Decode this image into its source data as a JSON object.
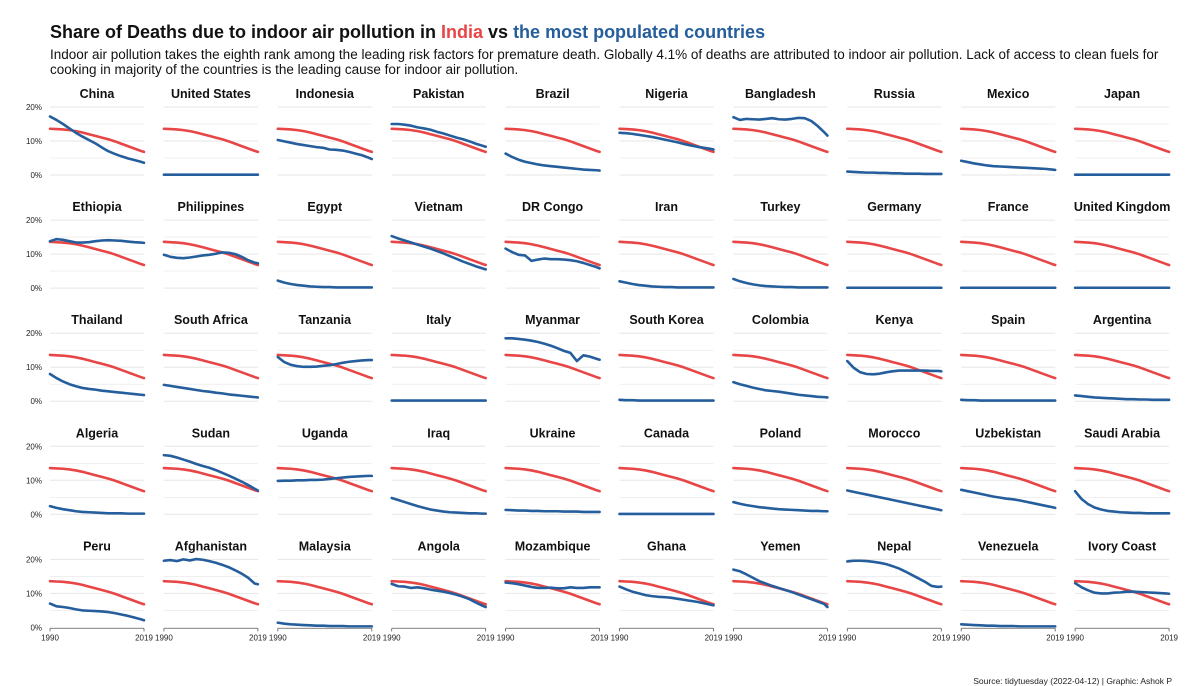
{
  "header": {
    "title_part1": "Share of Deaths due to indoor air pollution in ",
    "title_part2": "India",
    "title_part3": " vs ",
    "title_part4": "the most populated countries",
    "subtitle": "Indoor air pollution takes the eighth rank among the leading risk factors for premature death. Globally 4.1% of deaths are attributed to indoor air pollution. Lack of access to clean fuels for cooking in majority of the countries is the leading cause for indoor air pollution.",
    "caption": "Source: tidytuesday (2022-04-12) | Graphic: Ashok P"
  },
  "colors": {
    "india": "#e84646",
    "country": "#255e9c",
    "grid": "#e6e6e6",
    "text": "#222222"
  },
  "chart_data": {
    "type": "line",
    "facet": "small multiples, 5 rows x 10 columns",
    "x_range": [
      1990,
      2019
    ],
    "x_ticks": [
      1990,
      2019
    ],
    "ylim": [
      0,
      20
    ],
    "y_ticks": [
      "0%",
      "10%",
      "20%"
    ],
    "grid": true,
    "x": [
      1990,
      1992,
      1994,
      1996,
      1998,
      2000,
      2002,
      2004,
      2006,
      2008,
      2010,
      2012,
      2014,
      2016,
      2018,
      2019
    ],
    "india": [
      13.6,
      13.5,
      13.4,
      13.2,
      12.9,
      12.5,
      12.0,
      11.5,
      11.0,
      10.5,
      9.9,
      9.2,
      8.5,
      7.8,
      7.1,
      6.8
    ],
    "series": [
      {
        "name": "China",
        "values": [
          17.2,
          16.2,
          15.0,
          13.7,
          12.4,
          11.3,
          10.3,
          9.3,
          8.1,
          7.0,
          6.2,
          5.5,
          4.9,
          4.4,
          3.9,
          3.6
        ]
      },
      {
        "name": "United States",
        "values": [
          0.1,
          0.1,
          0.1,
          0.1,
          0.1,
          0.1,
          0.1,
          0.1,
          0.1,
          0.1,
          0.1,
          0.1,
          0.1,
          0.1,
          0.1,
          0.1
        ]
      },
      {
        "name": "Indonesia",
        "values": [
          10.3,
          9.9,
          9.5,
          9.1,
          8.8,
          8.5,
          8.2,
          8.0,
          7.5,
          7.4,
          7.2,
          6.8,
          6.3,
          5.8,
          5.1,
          4.7
        ]
      },
      {
        "name": "Pakistan",
        "values": [
          15.0,
          15.0,
          14.8,
          14.5,
          14.0,
          13.7,
          13.3,
          12.7,
          12.2,
          11.6,
          11.0,
          10.5,
          9.9,
          9.2,
          8.6,
          8.3
        ]
      },
      {
        "name": "Brazil",
        "values": [
          6.3,
          5.3,
          4.5,
          3.9,
          3.5,
          3.1,
          2.8,
          2.6,
          2.4,
          2.2,
          2.0,
          1.8,
          1.6,
          1.5,
          1.4,
          1.3
        ]
      },
      {
        "name": "Nigeria",
        "values": [
          12.4,
          12.3,
          12.1,
          11.8,
          11.5,
          11.2,
          10.8,
          10.4,
          10.0,
          9.6,
          9.1,
          8.7,
          8.3,
          8.0,
          7.7,
          7.5
        ]
      },
      {
        "name": "Bangladesh",
        "values": [
          17.0,
          16.2,
          16.5,
          16.4,
          16.3,
          16.5,
          16.7,
          16.4,
          16.3,
          16.5,
          16.8,
          16.7,
          15.9,
          14.4,
          12.6,
          11.6
        ]
      },
      {
        "name": "Russia",
        "values": [
          1.0,
          0.9,
          0.8,
          0.7,
          0.7,
          0.6,
          0.6,
          0.5,
          0.5,
          0.4,
          0.4,
          0.4,
          0.3,
          0.3,
          0.3,
          0.3
        ]
      },
      {
        "name": "Mexico",
        "values": [
          4.2,
          3.8,
          3.4,
          3.1,
          2.8,
          2.6,
          2.5,
          2.4,
          2.3,
          2.2,
          2.1,
          2.0,
          1.9,
          1.8,
          1.6,
          1.5
        ]
      },
      {
        "name": "Japan",
        "values": [
          0.1,
          0.1,
          0.1,
          0.1,
          0.1,
          0.1,
          0.1,
          0.1,
          0.1,
          0.1,
          0.1,
          0.1,
          0.1,
          0.1,
          0.1,
          0.1
        ]
      },
      {
        "name": "Ethiopia",
        "values": [
          13.8,
          14.4,
          14.2,
          13.8,
          13.4,
          13.4,
          13.5,
          13.8,
          14.0,
          14.1,
          14.0,
          13.9,
          13.7,
          13.5,
          13.4,
          13.3
        ]
      },
      {
        "name": "Philippines",
        "values": [
          9.8,
          9.2,
          8.9,
          8.8,
          9.0,
          9.3,
          9.6,
          9.8,
          10.1,
          10.5,
          10.4,
          10.0,
          9.2,
          8.2,
          7.5,
          7.3
        ]
      },
      {
        "name": "Egypt",
        "values": [
          2.2,
          1.6,
          1.2,
          0.9,
          0.7,
          0.5,
          0.4,
          0.3,
          0.3,
          0.2,
          0.2,
          0.2,
          0.2,
          0.2,
          0.2,
          0.2
        ]
      },
      {
        "name": "Vietnam",
        "values": [
          15.3,
          14.6,
          14.0,
          13.4,
          12.8,
          12.2,
          11.6,
          10.9,
          10.2,
          9.4,
          8.6,
          7.8,
          7.1,
          6.4,
          5.8,
          5.5
        ]
      },
      {
        "name": "DR Congo",
        "values": [
          11.6,
          10.6,
          9.8,
          9.6,
          8.0,
          8.4,
          8.7,
          8.5,
          8.5,
          8.4,
          8.2,
          7.9,
          7.4,
          6.8,
          6.2,
          5.8
        ]
      },
      {
        "name": "Iran",
        "values": [
          2.0,
          1.6,
          1.2,
          0.9,
          0.7,
          0.5,
          0.4,
          0.3,
          0.3,
          0.2,
          0.2,
          0.2,
          0.2,
          0.2,
          0.2,
          0.2
        ]
      },
      {
        "name": "Turkey",
        "values": [
          2.7,
          2.0,
          1.5,
          1.1,
          0.8,
          0.6,
          0.5,
          0.4,
          0.3,
          0.3,
          0.2,
          0.2,
          0.2,
          0.2,
          0.2,
          0.2
        ]
      },
      {
        "name": "Germany",
        "values": [
          0.1,
          0.1,
          0.1,
          0.1,
          0.1,
          0.1,
          0.1,
          0.1,
          0.1,
          0.1,
          0.1,
          0.1,
          0.1,
          0.1,
          0.1,
          0.1
        ]
      },
      {
        "name": "France",
        "values": [
          0.1,
          0.1,
          0.1,
          0.1,
          0.1,
          0.1,
          0.1,
          0.1,
          0.1,
          0.1,
          0.1,
          0.1,
          0.1,
          0.1,
          0.1,
          0.1
        ]
      },
      {
        "name": "United Kingdom",
        "values": [
          0.1,
          0.1,
          0.1,
          0.1,
          0.1,
          0.1,
          0.1,
          0.1,
          0.1,
          0.1,
          0.1,
          0.1,
          0.1,
          0.1,
          0.1,
          0.1
        ]
      },
      {
        "name": "Thailand",
        "values": [
          8.0,
          6.8,
          5.8,
          5.0,
          4.4,
          3.9,
          3.6,
          3.4,
          3.1,
          2.9,
          2.7,
          2.5,
          2.3,
          2.1,
          1.9,
          1.8
        ]
      },
      {
        "name": "South Africa",
        "values": [
          4.8,
          4.5,
          4.2,
          3.9,
          3.6,
          3.3,
          3.0,
          2.8,
          2.5,
          2.3,
          2.0,
          1.8,
          1.6,
          1.4,
          1.2,
          1.1
        ]
      },
      {
        "name": "Tanzania",
        "values": [
          13.0,
          11.5,
          10.7,
          10.3,
          10.1,
          10.1,
          10.2,
          10.4,
          10.6,
          10.9,
          11.3,
          11.6,
          11.8,
          12.0,
          12.1,
          12.1
        ]
      },
      {
        "name": "Italy",
        "values": [
          0.2,
          0.2,
          0.2,
          0.2,
          0.2,
          0.2,
          0.2,
          0.2,
          0.2,
          0.2,
          0.2,
          0.2,
          0.2,
          0.2,
          0.2,
          0.2
        ]
      },
      {
        "name": "Myanmar",
        "values": [
          18.5,
          18.5,
          18.3,
          18.1,
          17.8,
          17.4,
          16.9,
          16.3,
          15.6,
          14.8,
          14.2,
          11.8,
          13.5,
          13.1,
          12.5,
          12.2
        ]
      },
      {
        "name": "South Korea",
        "values": [
          0.4,
          0.3,
          0.3,
          0.2,
          0.2,
          0.2,
          0.2,
          0.2,
          0.2,
          0.2,
          0.2,
          0.2,
          0.2,
          0.2,
          0.2,
          0.2
        ]
      },
      {
        "name": "Colombia",
        "values": [
          5.6,
          5.0,
          4.5,
          4.0,
          3.6,
          3.2,
          3.0,
          2.8,
          2.5,
          2.2,
          1.9,
          1.7,
          1.5,
          1.3,
          1.2,
          1.1
        ]
      },
      {
        "name": "Kenya",
        "values": [
          11.8,
          9.8,
          8.5,
          8.0,
          7.9,
          8.1,
          8.5,
          8.8,
          9.0,
          9.0,
          9.0,
          9.0,
          9.0,
          8.9,
          8.9,
          8.8
        ]
      },
      {
        "name": "Spain",
        "values": [
          0.4,
          0.3,
          0.3,
          0.2,
          0.2,
          0.2,
          0.2,
          0.2,
          0.2,
          0.2,
          0.2,
          0.2,
          0.2,
          0.2,
          0.2,
          0.2
        ]
      },
      {
        "name": "Argentina",
        "values": [
          1.7,
          1.5,
          1.3,
          1.1,
          1.0,
          0.9,
          0.8,
          0.7,
          0.6,
          0.6,
          0.5,
          0.5,
          0.4,
          0.4,
          0.4,
          0.4
        ]
      },
      {
        "name": "Algeria",
        "values": [
          2.4,
          1.9,
          1.5,
          1.2,
          0.9,
          0.7,
          0.6,
          0.5,
          0.4,
          0.3,
          0.3,
          0.3,
          0.2,
          0.2,
          0.2,
          0.2
        ]
      },
      {
        "name": "Sudan",
        "values": [
          17.4,
          17.2,
          16.7,
          16.1,
          15.5,
          14.8,
          14.2,
          13.7,
          13.0,
          12.2,
          11.4,
          10.5,
          9.6,
          8.6,
          7.5,
          7.0
        ]
      },
      {
        "name": "Uganda",
        "values": [
          9.8,
          9.9,
          9.9,
          10.0,
          10.0,
          10.1,
          10.1,
          10.2,
          10.4,
          10.6,
          10.8,
          11.0,
          11.1,
          11.2,
          11.3,
          11.3
        ]
      },
      {
        "name": "Iraq",
        "values": [
          4.8,
          4.2,
          3.6,
          3.0,
          2.4,
          1.9,
          1.4,
          1.1,
          0.8,
          0.6,
          0.5,
          0.4,
          0.3,
          0.3,
          0.2,
          0.2
        ]
      },
      {
        "name": "Ukraine",
        "values": [
          1.3,
          1.2,
          1.1,
          1.1,
          1.0,
          1.0,
          0.9,
          0.9,
          0.9,
          0.8,
          0.8,
          0.8,
          0.7,
          0.7,
          0.7,
          0.7
        ]
      },
      {
        "name": "Canada",
        "values": [
          0.1,
          0.1,
          0.1,
          0.1,
          0.1,
          0.1,
          0.1,
          0.1,
          0.1,
          0.1,
          0.1,
          0.1,
          0.1,
          0.1,
          0.1,
          0.1
        ]
      },
      {
        "name": "Poland",
        "values": [
          3.6,
          3.1,
          2.7,
          2.4,
          2.1,
          1.9,
          1.7,
          1.5,
          1.4,
          1.3,
          1.2,
          1.1,
          1.0,
          1.0,
          0.9,
          0.9
        ]
      },
      {
        "name": "Morocco",
        "values": [
          7.0,
          6.6,
          6.2,
          5.8,
          5.4,
          5.0,
          4.6,
          4.2,
          3.8,
          3.4,
          3.0,
          2.6,
          2.2,
          1.8,
          1.4,
          1.2
        ]
      },
      {
        "name": "Uzbekistan",
        "values": [
          7.2,
          6.8,
          6.4,
          6.0,
          5.6,
          5.2,
          4.9,
          4.6,
          4.4,
          4.1,
          3.7,
          3.3,
          2.9,
          2.5,
          2.1,
          1.9
        ]
      },
      {
        "name": "Saudi Arabia",
        "values": [
          6.8,
          4.5,
          3.0,
          2.0,
          1.4,
          1.0,
          0.8,
          0.6,
          0.5,
          0.4,
          0.4,
          0.3,
          0.3,
          0.3,
          0.3,
          0.3
        ]
      },
      {
        "name": "Peru",
        "values": [
          7.0,
          6.2,
          6.0,
          5.7,
          5.3,
          5.0,
          4.9,
          4.8,
          4.7,
          4.5,
          4.2,
          3.8,
          3.4,
          2.9,
          2.4,
          2.1
        ]
      },
      {
        "name": "Afghanistan",
        "values": [
          19.6,
          19.8,
          19.5,
          20.0,
          19.7,
          20.1,
          19.9,
          19.5,
          19.0,
          18.4,
          17.7,
          16.8,
          15.8,
          14.6,
          12.9,
          12.7
        ]
      },
      {
        "name": "Malaysia",
        "values": [
          1.4,
          1.1,
          0.9,
          0.8,
          0.7,
          0.6,
          0.5,
          0.5,
          0.4,
          0.4,
          0.4,
          0.3,
          0.3,
          0.3,
          0.3,
          0.3
        ]
      },
      {
        "name": "Angola",
        "values": [
          12.8,
          12.1,
          12.0,
          11.6,
          11.8,
          11.5,
          11.1,
          10.8,
          10.5,
          10.1,
          9.6,
          9.0,
          8.3,
          7.3,
          6.4,
          6.0
        ]
      },
      {
        "name": "Mozambique",
        "values": [
          13.2,
          13.0,
          12.7,
          12.3,
          11.9,
          11.6,
          11.6,
          11.7,
          11.5,
          11.5,
          11.8,
          11.6,
          11.6,
          11.8,
          11.8,
          11.8
        ]
      },
      {
        "name": "Ghana",
        "values": [
          12.0,
          11.2,
          10.5,
          10.0,
          9.5,
          9.2,
          9.0,
          8.9,
          8.7,
          8.4,
          8.1,
          7.8,
          7.5,
          7.1,
          6.7,
          6.5
        ]
      },
      {
        "name": "Yemen",
        "values": [
          17.0,
          16.5,
          15.6,
          14.6,
          13.6,
          12.9,
          12.2,
          11.6,
          11.0,
          10.4,
          9.7,
          9.0,
          8.3,
          7.6,
          6.9,
          6.0
        ]
      },
      {
        "name": "Nepal",
        "values": [
          19.4,
          19.6,
          19.6,
          19.5,
          19.3,
          19.0,
          18.6,
          18.0,
          17.3,
          16.4,
          15.4,
          14.4,
          13.4,
          12.2,
          11.9,
          12.0
        ]
      },
      {
        "name": "Venezuela",
        "values": [
          0.9,
          0.8,
          0.7,
          0.6,
          0.5,
          0.5,
          0.4,
          0.4,
          0.4,
          0.3,
          0.3,
          0.3,
          0.3,
          0.3,
          0.3,
          0.3
        ]
      },
      {
        "name": "Ivory Coast",
        "values": [
          13.0,
          11.8,
          10.9,
          10.2,
          10.0,
          10.0,
          10.2,
          10.3,
          10.5,
          10.5,
          10.4,
          10.3,
          10.2,
          10.1,
          10.0,
          9.9
        ]
      }
    ]
  }
}
